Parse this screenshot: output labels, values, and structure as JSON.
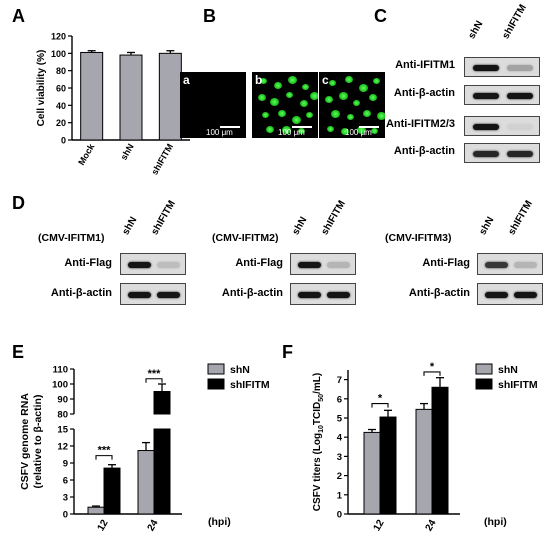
{
  "panels": {
    "A": "A",
    "B": "B",
    "C": "C",
    "D": "D",
    "E": "E",
    "F": "F"
  },
  "panelA": {
    "chart_data": {
      "type": "bar",
      "categories": [
        "Mock",
        "shN",
        "shIFITM"
      ],
      "values": [
        101,
        98,
        100
      ],
      "errors": [
        2,
        3,
        3
      ],
      "ylabel": "Cell viability (%)",
      "yticks": [
        "0",
        "20",
        "40",
        "60",
        "80",
        "100",
        "120"
      ],
      "ylim": [
        0,
        120
      ],
      "bar_color": "#a6a6ae"
    }
  },
  "panelB": {
    "subpanels": [
      {
        "label": "a",
        "scale": "100 μm",
        "cells": false
      },
      {
        "label": "b",
        "scale": "100 μm",
        "cells": true
      },
      {
        "label": "c",
        "scale": "100 μm",
        "cells": true
      }
    ]
  },
  "panelC": {
    "lanes": [
      "shN",
      "shIFITM"
    ],
    "rows": [
      {
        "label": "Anti-IFITM1",
        "bands": [
          1.0,
          0.5
        ]
      },
      {
        "label": "Anti-β-actin",
        "bands": [
          1.0,
          1.0
        ]
      },
      {
        "label": "Anti-IFITM2/3",
        "bands": [
          1.0,
          0.2
        ]
      },
      {
        "label": "Anti-β-actin",
        "bands": [
          0.95,
          0.95
        ]
      }
    ]
  },
  "panelD": {
    "groups": [
      {
        "title": "(CMV-IFITM1)",
        "lanes": [
          "shN",
          "shIFITM"
        ],
        "rows": [
          {
            "label": "Anti-Flag",
            "bands": [
              1.0,
              0.35
            ]
          },
          {
            "label": "Anti-β-actin",
            "bands": [
              1.0,
              1.0
            ]
          }
        ]
      },
      {
        "title": "(CMV-IFITM2)",
        "lanes": [
          "shN",
          "shIFITM"
        ],
        "rows": [
          {
            "label": "Anti-Flag",
            "bands": [
              1.0,
              0.4
            ]
          },
          {
            "label": "Anti-β-actin",
            "bands": [
              1.0,
              1.0
            ]
          }
        ]
      },
      {
        "title": "(CMV-IFITM3)",
        "lanes": [
          "shN",
          "shIFITM"
        ],
        "rows": [
          {
            "label": "Anti-Flag",
            "bands": [
              0.9,
              0.4
            ]
          },
          {
            "label": "Anti-β-actin",
            "bands": [
              1.0,
              1.0
            ]
          }
        ]
      }
    ]
  },
  "panelE": {
    "chart_data": {
      "type": "bar",
      "categories": [
        "12",
        "24"
      ],
      "x_unit": "(hpi)",
      "series": [
        {
          "name": "shN",
          "values": [
            1.2,
            11.2
          ],
          "errors": [
            0.2,
            1.4
          ],
          "color": "#a6a6ae"
        },
        {
          "name": "shIFITM",
          "values": [
            8.1,
            95
          ],
          "errors": [
            0.6,
            5
          ],
          "color": "#000000"
        }
      ],
      "ylabel_line1": "CSFV genome RNA",
      "ylabel_line2": "(relative to β-actin)",
      "yticks_low": [
        "0",
        "3",
        "6",
        "9",
        "12",
        "15"
      ],
      "yticks_high": [
        "80",
        "90",
        "100",
        "110"
      ],
      "ylim_low": [
        0,
        15
      ],
      "ylim_high": [
        80,
        110
      ],
      "significance": [
        "***",
        "***"
      ]
    }
  },
  "panelF": {
    "chart_data": {
      "type": "bar",
      "categories": [
        "12",
        "24"
      ],
      "x_unit": "(hpi)",
      "series": [
        {
          "name": "shN",
          "values": [
            4.25,
            5.45
          ],
          "errors": [
            0.15,
            0.3
          ],
          "color": "#a6a6ae"
        },
        {
          "name": "shIFITM",
          "values": [
            5.05,
            6.6
          ],
          "errors": [
            0.35,
            0.5
          ],
          "color": "#000000"
        }
      ],
      "ylabel": "CSFV titers (Log10TCID50/mL)",
      "ylabel_parts": [
        "CSFV titers (Log",
        "10",
        "TCID",
        "50",
        "/mL)"
      ],
      "yticks": [
        "0",
        "1",
        "2",
        "3",
        "4",
        "5",
        "6",
        "7"
      ],
      "ylim": [
        0,
        7.5
      ],
      "significance": [
        "*",
        "*"
      ]
    }
  }
}
